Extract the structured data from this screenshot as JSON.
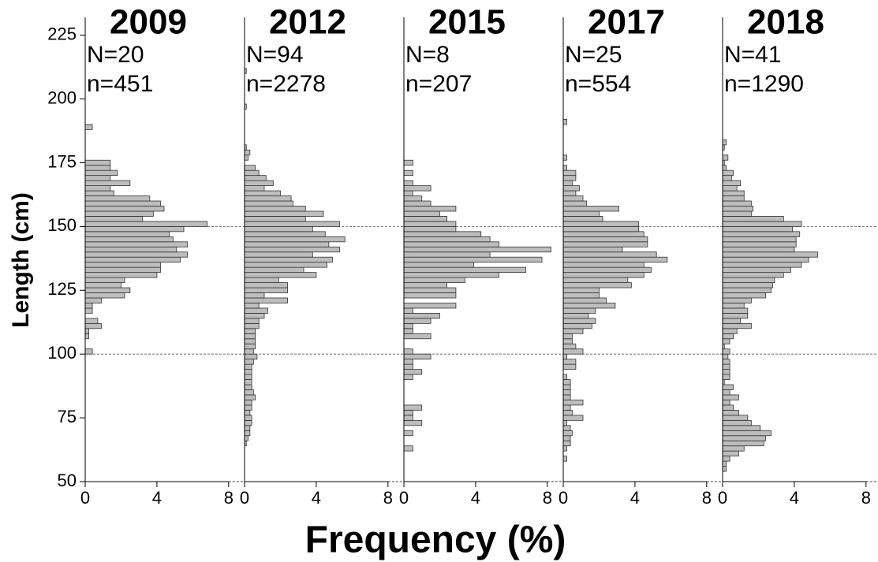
{
  "ylabel": "Length (cm)",
  "xlabel": "Frequency (%)",
  "chart_data": [
    {
      "type": "histogram",
      "orientation": "horizontal",
      "title": "2009",
      "annotations": [
        "N=20",
        "n=451"
      ],
      "bins": [
        54,
        56,
        58,
        60,
        62,
        64,
        66,
        68,
        70,
        72,
        74,
        76,
        78,
        80,
        82,
        84,
        86,
        88,
        90,
        92,
        94,
        96,
        98,
        100,
        102,
        104,
        106,
        108,
        110,
        112,
        114,
        116,
        118,
        120,
        122,
        124,
        126,
        128,
        130,
        132,
        134,
        136,
        138,
        140,
        142,
        144,
        146,
        148,
        150,
        152,
        154,
        156,
        158,
        160,
        162,
        164,
        166,
        168,
        170,
        172,
        174,
        176,
        178,
        180,
        182,
        184,
        186,
        188,
        190,
        192,
        194,
        196,
        198,
        200,
        202,
        204,
        206,
        208,
        210,
        212
      ],
      "counts": [
        0,
        0,
        0,
        0,
        0,
        0,
        0,
        0,
        0,
        0,
        0,
        0,
        0,
        0,
        0,
        0,
        0,
        0,
        0,
        0,
        0,
        0,
        0,
        0.4,
        0,
        0,
        0.2,
        0.2,
        0.9,
        0.7,
        0,
        0.4,
        0.4,
        0.9,
        2.2,
        2.5,
        2.0,
        2.2,
        4.0,
        4.2,
        4.2,
        5.3,
        5.7,
        5.1,
        5.7,
        4.9,
        4.7,
        5.5,
        6.8,
        3.2,
        3.8,
        4.4,
        4.2,
        3.6,
        1.6,
        1.4,
        2.5,
        1.4,
        1.8,
        1.4,
        1.4,
        0,
        0,
        0,
        0,
        0,
        0,
        0.4,
        0,
        0,
        0,
        0,
        0,
        0,
        0,
        0,
        0,
        0,
        0
      ],
      "color": "#bdbdbd",
      "xlim": [
        0,
        8.8
      ],
      "xticks": [
        0,
        4,
        8
      ],
      "ylim": [
        50,
        232
      ],
      "yticks": [
        50,
        75,
        100,
        125,
        150,
        175,
        200,
        225
      ],
      "hlines": [
        100,
        150
      ]
    },
    {
      "type": "histogram",
      "orientation": "horizontal",
      "title": "2012",
      "annotations": [
        "N=94",
        "n=2278"
      ],
      "bins": [
        54,
        56,
        58,
        60,
        62,
        64,
        66,
        68,
        70,
        72,
        74,
        76,
        78,
        80,
        82,
        84,
        86,
        88,
        90,
        92,
        94,
        96,
        98,
        100,
        102,
        104,
        106,
        108,
        110,
        112,
        114,
        116,
        118,
        120,
        122,
        124,
        126,
        128,
        130,
        132,
        134,
        136,
        138,
        140,
        142,
        144,
        146,
        148,
        150,
        152,
        154,
        156,
        158,
        160,
        162,
        164,
        166,
        168,
        170,
        172,
        174,
        176,
        178,
        180,
        182,
        184,
        186,
        188,
        190,
        192,
        194,
        196,
        198,
        200,
        202,
        204,
        206,
        208,
        210,
        212
      ],
      "counts": [
        0,
        0,
        0,
        0,
        0,
        0.1,
        0.2,
        0.3,
        0.3,
        0.4,
        0.4,
        0.3,
        0.4,
        0.4,
        0.6,
        0.5,
        0.4,
        0.4,
        0.4,
        0.4,
        0.4,
        0.5,
        0.7,
        0.5,
        0.6,
        0.6,
        0.6,
        0.6,
        0.8,
        0.8,
        1.1,
        1.3,
        0.8,
        2.4,
        1.1,
        2.4,
        2.4,
        1.9,
        4.0,
        3.3,
        4.6,
        4.9,
        3.8,
        5.3,
        4.7,
        5.6,
        4.5,
        3.8,
        5.3,
        3.4,
        4.4,
        3.4,
        2.7,
        2.6,
        2.0,
        1.1,
        1.6,
        1.2,
        0.8,
        0.6,
        0,
        0.2,
        0.3,
        0.1,
        0,
        0,
        0,
        0,
        0,
        0,
        0,
        0.1,
        0,
        0,
        0,
        0,
        0,
        0,
        0.1
      ],
      "color": "#bdbdbd",
      "xlim": [
        0,
        8.8
      ],
      "xticks": [
        0,
        4,
        8
      ],
      "ylim": [
        50,
        232
      ]
    },
    {
      "type": "histogram",
      "orientation": "horizontal",
      "title": "2015",
      "annotations": [
        "N=8",
        "n=207"
      ],
      "bins": [
        54,
        56,
        58,
        60,
        62,
        64,
        66,
        68,
        70,
        72,
        74,
        76,
        78,
        80,
        82,
        84,
        86,
        88,
        90,
        92,
        94,
        96,
        98,
        100,
        102,
        104,
        106,
        108,
        110,
        112,
        114,
        116,
        118,
        120,
        122,
        124,
        126,
        128,
        130,
        132,
        134,
        136,
        138,
        140,
        142,
        144,
        146,
        148,
        150,
        152,
        154,
        156,
        158,
        160,
        162,
        164,
        166,
        168,
        170,
        172,
        174,
        176,
        178,
        180,
        182,
        184,
        186,
        188,
        190,
        192,
        194,
        196,
        198,
        200,
        202,
        204,
        206,
        208,
        210,
        212
      ],
      "counts": [
        0,
        0,
        0,
        0,
        0.5,
        0,
        0,
        0.5,
        0,
        1.0,
        0.5,
        0.5,
        1.0,
        0,
        0,
        0,
        0,
        0,
        0.5,
        1.0,
        0.5,
        0.5,
        1.5,
        0.5,
        0,
        0,
        1.5,
        0.5,
        0.5,
        1.5,
        2.0,
        0.5,
        2.9,
        0,
        2.9,
        2.9,
        2.4,
        3.4,
        5.3,
        6.8,
        3.9,
        7.7,
        4.8,
        8.2,
        5.3,
        4.8,
        4.3,
        2.9,
        2.9,
        2.4,
        2.0,
        2.9,
        1.5,
        1.0,
        0.5,
        1.5,
        0.5,
        0,
        0.5,
        0,
        0.5,
        0,
        0,
        0,
        0,
        0,
        0,
        0,
        0,
        0,
        0,
        0,
        0,
        0,
        0,
        0,
        0,
        0,
        0
      ],
      "color": "#bdbdbd",
      "xlim": [
        0,
        8.8
      ],
      "xticks": [
        0,
        4,
        8
      ],
      "ylim": [
        50,
        232
      ]
    },
    {
      "type": "histogram",
      "orientation": "horizontal",
      "title": "2017",
      "annotations": [
        "N=25",
        "n=554"
      ],
      "bins": [
        54,
        56,
        58,
        60,
        62,
        64,
        66,
        68,
        70,
        72,
        74,
        76,
        78,
        80,
        82,
        84,
        86,
        88,
        90,
        92,
        94,
        96,
        98,
        100,
        102,
        104,
        106,
        108,
        110,
        112,
        114,
        116,
        118,
        120,
        122,
        124,
        126,
        128,
        130,
        132,
        134,
        136,
        138,
        140,
        142,
        144,
        146,
        148,
        150,
        152,
        154,
        156,
        158,
        160,
        162,
        164,
        166,
        168,
        170,
        172,
        174,
        176,
        178,
        180,
        182,
        184,
        186,
        188,
        190,
        192,
        194,
        196,
        198,
        200,
        202,
        204,
        206,
        208,
        210,
        212
      ],
      "counts": [
        0,
        0,
        0.2,
        0,
        0.2,
        0.4,
        0.4,
        0.5,
        0.4,
        0.2,
        1.1,
        0.5,
        0.4,
        1.1,
        0.4,
        0.4,
        0.4,
        0.4,
        0.2,
        0,
        0.7,
        0.7,
        0.2,
        1.1,
        0.7,
        0.5,
        0.5,
        1.1,
        1.6,
        1.8,
        1.4,
        1.8,
        2.9,
        2.4,
        2.0,
        2.0,
        3.8,
        3.6,
        4.5,
        4.9,
        4.5,
        5.8,
        5.2,
        3.3,
        4.7,
        4.7,
        4.5,
        4.2,
        4.2,
        2.2,
        2.0,
        3.1,
        1.3,
        1.1,
        0.7,
        0.9,
        0.5,
        0.7,
        0.7,
        0.2,
        0,
        0.2,
        0,
        0,
        0,
        0,
        0,
        0,
        0.2,
        0,
        0,
        0,
        0,
        0,
        0,
        0,
        0,
        0,
        0
      ],
      "color": "#bdbdbd",
      "xlim": [
        0,
        8.8
      ],
      "xticks": [
        0,
        4,
        8
      ],
      "ylim": [
        50,
        232
      ]
    },
    {
      "type": "histogram",
      "orientation": "horizontal",
      "title": "2018",
      "annotations": [
        "N=41",
        "n=1290"
      ],
      "bins": [
        54,
        56,
        58,
        60,
        62,
        64,
        66,
        68,
        70,
        72,
        74,
        76,
        78,
        80,
        82,
        84,
        86,
        88,
        90,
        92,
        94,
        96,
        98,
        100,
        102,
        104,
        106,
        108,
        110,
        112,
        114,
        116,
        118,
        120,
        122,
        124,
        126,
        128,
        130,
        132,
        134,
        136,
        138,
        140,
        142,
        144,
        146,
        148,
        150,
        152,
        154,
        156,
        158,
        160,
        162,
        164,
        166,
        168,
        170,
        172,
        174,
        176,
        178,
        180,
        182,
        184,
        186,
        188,
        190,
        192,
        194,
        196,
        198,
        200,
        202,
        204,
        206,
        208,
        210,
        212
      ],
      "counts": [
        0.2,
        0.2,
        0.4,
        0.9,
        1.2,
        2.3,
        2.4,
        2.7,
        2.1,
        1.6,
        1.4,
        0.9,
        0.6,
        0.4,
        0.9,
        0.4,
        0.6,
        0.1,
        0.4,
        0.4,
        0.4,
        0.4,
        0.3,
        0.4,
        0.1,
        0.4,
        0.6,
        0.8,
        1.6,
        1.0,
        1.4,
        1.4,
        1.2,
        1.6,
        2.4,
        2.7,
        2.8,
        2.9,
        3.4,
        3.8,
        4.4,
        4.8,
        5.3,
        4.0,
        4.1,
        4.1,
        4.3,
        3.9,
        4.4,
        3.4,
        1.6,
        1.7,
        1.6,
        1.2,
        1.2,
        0.8,
        1.0,
        0.5,
        0.6,
        0.2,
        0.1,
        0.3,
        0,
        0.1,
        0.2,
        0,
        0,
        0,
        0,
        0,
        0,
        0,
        0,
        0,
        0,
        0,
        0,
        0,
        0
      ],
      "color": "#bdbdbd",
      "xlim": [
        0,
        8.8
      ],
      "xticks": [
        0,
        4,
        8
      ],
      "ylim": [
        50,
        232
      ]
    }
  ]
}
